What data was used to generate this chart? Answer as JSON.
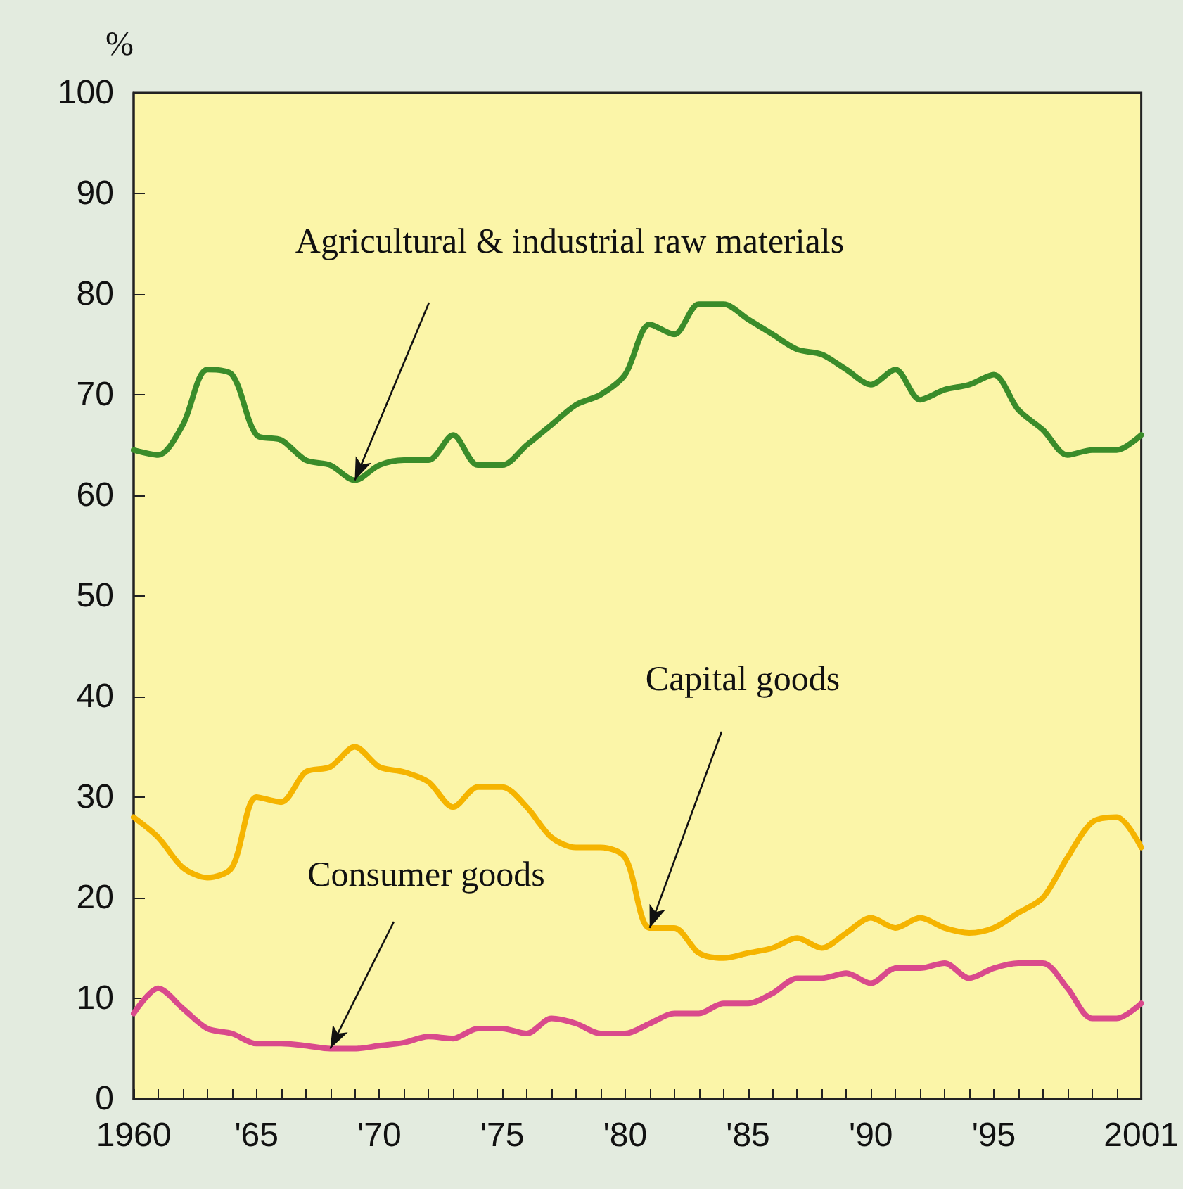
{
  "chart_data": {
    "type": "line",
    "ylabel": "%",
    "x": [
      1960,
      1961,
      1962,
      1963,
      1964,
      1965,
      1966,
      1967,
      1968,
      1969,
      1970,
      1971,
      1972,
      1973,
      1974,
      1975,
      1976,
      1977,
      1978,
      1979,
      1980,
      1981,
      1982,
      1983,
      1984,
      1985,
      1986,
      1987,
      1988,
      1989,
      1990,
      1991,
      1992,
      1993,
      1994,
      1995,
      1996,
      1997,
      1998,
      1999,
      2000,
      2001
    ],
    "series": [
      {
        "color": "#3a8c2a",
        "values": [
          64.5,
          64,
          67,
          72.5,
          72,
          66,
          65.5,
          63.5,
          63,
          61.5,
          63,
          63.5,
          63.5,
          66,
          63,
          63,
          65,
          67,
          69,
          70,
          72,
          77,
          76,
          79,
          79,
          77.5,
          76,
          74.5,
          74,
          72.5,
          71,
          72.5,
          69.5,
          70.5,
          71,
          72,
          68.5,
          66.5,
          64,
          64.5,
          64.5,
          66
        ]
      },
      {
        "color": "#f5b400",
        "values": [
          28,
          26,
          23,
          22,
          23,
          30,
          29.5,
          32.5,
          33,
          35,
          33,
          32.5,
          31.5,
          29,
          31,
          31,
          29,
          26,
          25,
          25,
          24,
          17,
          17,
          14.5,
          14,
          14.5,
          15,
          16,
          15,
          16.5,
          18,
          17,
          18,
          17,
          16.5,
          17,
          18.5,
          20,
          24,
          27.5,
          28,
          25
        ]
      },
      {
        "color": "#d94a8c",
        "values": [
          8.5,
          11,
          9,
          7,
          6.5,
          5.5,
          5.5,
          5.3,
          5,
          5,
          5.3,
          5.6,
          6.2,
          6,
          7,
          7,
          6.5,
          8,
          7.5,
          6.5,
          6.5,
          7.5,
          8.5,
          8.5,
          9.5,
          9.5,
          10.5,
          12,
          12,
          12.5,
          11.5,
          13,
          13,
          13.5,
          12,
          13,
          13.5,
          13.5,
          11,
          8,
          8,
          9.5
        ]
      }
    ],
    "xlim": [
      1960,
      2001
    ],
    "xticks": [
      {
        "value": 1960,
        "label": "1960"
      },
      {
        "value": 1961,
        "label": null
      },
      {
        "value": 1962,
        "label": null
      },
      {
        "value": 1963,
        "label": null
      },
      {
        "value": 1964,
        "label": null
      },
      {
        "value": 1965,
        "label": "'65"
      },
      {
        "value": 1966,
        "label": null
      },
      {
        "value": 1967,
        "label": null
      },
      {
        "value": 1968,
        "label": null
      },
      {
        "value": 1969,
        "label": null
      },
      {
        "value": 1970,
        "label": "'70"
      },
      {
        "value": 1971,
        "label": null
      },
      {
        "value": 1972,
        "label": null
      },
      {
        "value": 1973,
        "label": null
      },
      {
        "value": 1974,
        "label": null
      },
      {
        "value": 1975,
        "label": "'75"
      },
      {
        "value": 1976,
        "label": null
      },
      {
        "value": 1977,
        "label": null
      },
      {
        "value": 1978,
        "label": null
      },
      {
        "value": 1979,
        "label": null
      },
      {
        "value": 1980,
        "label": "'80"
      },
      {
        "value": 1981,
        "label": null
      },
      {
        "value": 1982,
        "label": null
      },
      {
        "value": 1983,
        "label": null
      },
      {
        "value": 1984,
        "label": null
      },
      {
        "value": 1985,
        "label": "'85"
      },
      {
        "value": 1986,
        "label": null
      },
      {
        "value": 1987,
        "label": null
      },
      {
        "value": 1988,
        "label": null
      },
      {
        "value": 1989,
        "label": null
      },
      {
        "value": 1990,
        "label": "'90"
      },
      {
        "value": 1991,
        "label": null
      },
      {
        "value": 1992,
        "label": null
      },
      {
        "value": 1993,
        "label": null
      },
      {
        "value": 1994,
        "label": null
      },
      {
        "value": 1995,
        "label": "'95"
      },
      {
        "value": 1996,
        "label": null
      },
      {
        "value": 1997,
        "label": null
      },
      {
        "value": 1998,
        "label": null
      },
      {
        "value": 1999,
        "label": null
      },
      {
        "value": 2000,
        "label": null
      },
      {
        "value": 2001,
        "label": "2001"
      }
    ],
    "ylim": [
      0,
      100
    ],
    "yticks": [
      0,
      10,
      20,
      30,
      40,
      50,
      60,
      70,
      80,
      90,
      100
    ],
    "grid": false,
    "marker": "none",
    "line_style": "solid",
    "annotations": [
      {
        "text": "Agricultural & industrial raw materials",
        "x": 1969,
        "y": 61.5
      },
      {
        "text": "Capital goods",
        "x": 1981,
        "y": 17
      },
      {
        "text": "Consumer goods",
        "x": 1968,
        "y": 5
      }
    ]
  }
}
